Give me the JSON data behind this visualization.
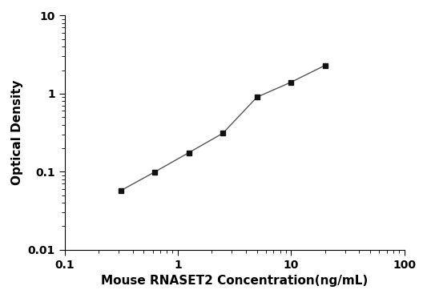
{
  "x": [
    0.313,
    0.625,
    1.25,
    2.5,
    5,
    10,
    20
  ],
  "y": [
    0.057,
    0.099,
    0.175,
    0.31,
    0.9,
    1.4,
    2.3
  ],
  "xlabel": "Mouse RNASET2 Concentration(ng/mL)",
  "ylabel": "Optical Density",
  "xlim": [
    0.1,
    100
  ],
  "ylim": [
    0.01,
    10
  ],
  "xticks": [
    0.1,
    1,
    10,
    100
  ],
  "yticks": [
    0.01,
    0.1,
    1,
    10
  ],
  "xtick_labels": [
    "0.1",
    "1",
    "10",
    "100"
  ],
  "ytick_labels": [
    "0.01",
    "0.1",
    "1",
    "10"
  ],
  "line_color": "#555555",
  "marker_color": "#111111",
  "marker": "s",
  "marker_size": 5,
  "line_width": 1.0,
  "background_color": "#ffffff",
  "axis_label_fontsize": 11,
  "tick_label_fontsize": 10
}
